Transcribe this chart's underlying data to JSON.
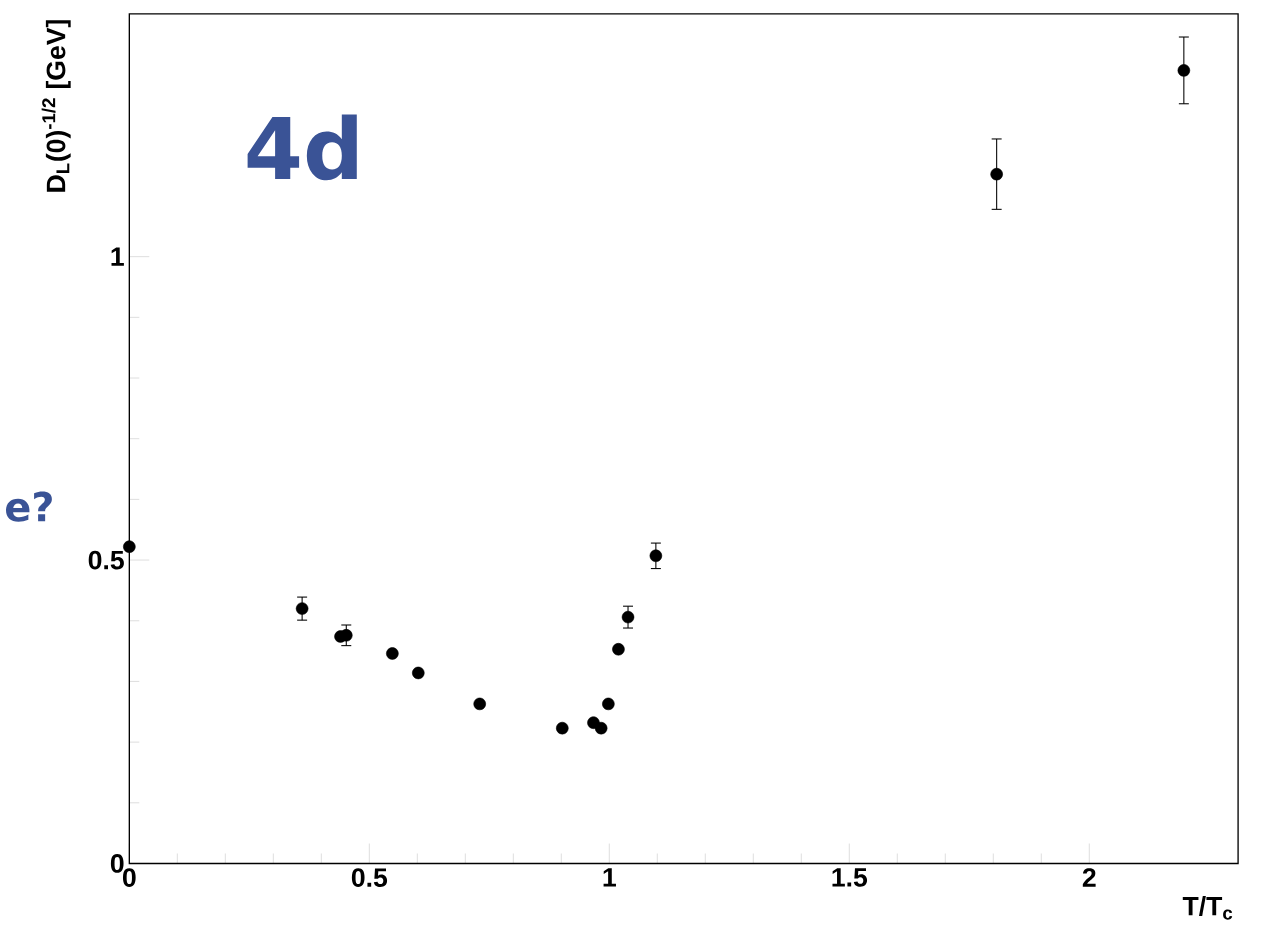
{
  "chart_data": {
    "type": "scatter",
    "xlabel": "T/T$_{c}$",
    "ylabel": "D$_{L}$(0)$^{-1/2}$ [GeV]",
    "annotations": [
      "4d",
      "e?"
    ],
    "x": [
      0.0,
      0.36,
      0.44,
      0.452,
      0.548,
      0.602,
      0.73,
      0.902,
      0.967,
      0.983,
      0.998,
      1.019,
      1.039,
      1.097,
      1.807,
      2.197
    ],
    "series": [
      {
        "color": "#000000",
        "values": [
          0.522,
          0.42,
          0.374,
          0.376,
          0.346,
          0.314,
          0.263,
          0.223,
          0.232,
          0.223,
          0.263,
          0.353,
          0.406,
          0.507,
          1.136,
          1.307
        ],
        "errors": [
          null,
          0.019,
          null,
          0.017,
          null,
          null,
          null,
          null,
          null,
          null,
          null,
          null,
          0.018,
          0.021,
          0.058,
          0.055
        ]
      }
    ],
    "xlim": [
      0,
      2.31
    ],
    "ylim": [
      0,
      1.4
    ],
    "xticks": [
      0,
      0.5,
      1,
      1.5,
      2
    ],
    "yticks": [
      0,
      0.5,
      1
    ],
    "marker": "circle"
  }
}
